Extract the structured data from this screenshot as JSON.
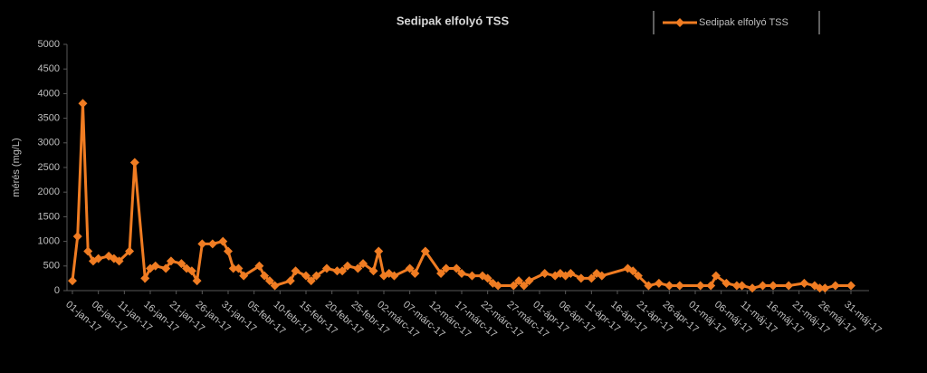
{
  "chart_data": {
    "type": "line",
    "title": "Sedipak elfolyó TSS",
    "y_label": "mérés (mg/L)",
    "series": [
      {
        "name": "Sedipak elfolyó TSS",
        "color": "#f07c22",
        "x": [
          "2017-01-01",
          "2017-01-02",
          "2017-01-03",
          "2017-01-04",
          "2017-01-05",
          "2017-01-06",
          "2017-01-08",
          "2017-01-09",
          "2017-01-10",
          "2017-01-12",
          "2017-01-13",
          "2017-01-15",
          "2017-01-16",
          "2017-01-17",
          "2017-01-19",
          "2017-01-20",
          "2017-01-22",
          "2017-01-23",
          "2017-01-24",
          "2017-01-25",
          "2017-01-26",
          "2017-01-28",
          "2017-01-30",
          "2017-01-31",
          "2017-02-01",
          "2017-02-02",
          "2017-02-03",
          "2017-02-06",
          "2017-02-07",
          "2017-02-08",
          "2017-02-09",
          "2017-02-12",
          "2017-02-13",
          "2017-02-15",
          "2017-02-16",
          "2017-02-17",
          "2017-02-19",
          "2017-02-21",
          "2017-02-22",
          "2017-02-23",
          "2017-02-25",
          "2017-02-26",
          "2017-02-28",
          "2017-03-01",
          "2017-03-02",
          "2017-03-03",
          "2017-03-04",
          "2017-03-07",
          "2017-03-08",
          "2017-03-10",
          "2017-03-13",
          "2017-03-14",
          "2017-03-16",
          "2017-03-17",
          "2017-03-19",
          "2017-03-21",
          "2017-03-22",
          "2017-03-23",
          "2017-03-24",
          "2017-03-27",
          "2017-03-28",
          "2017-03-29",
          "2017-03-30",
          "2017-04-02",
          "2017-04-04",
          "2017-04-05",
          "2017-04-06",
          "2017-04-07",
          "2017-04-09",
          "2017-04-11",
          "2017-04-12",
          "2017-04-13",
          "2017-04-18",
          "2017-04-19",
          "2017-04-20",
          "2017-04-22",
          "2017-04-24",
          "2017-04-26",
          "2017-04-28",
          "2017-05-02",
          "2017-05-04",
          "2017-05-05",
          "2017-05-07",
          "2017-05-09",
          "2017-05-10",
          "2017-05-12",
          "2017-05-14",
          "2017-05-16",
          "2017-05-19",
          "2017-05-22",
          "2017-05-24",
          "2017-05-25",
          "2017-05-26",
          "2017-05-28",
          "2017-05-31"
        ],
        "values": [
          200,
          1100,
          3800,
          800,
          600,
          650,
          700,
          650,
          600,
          800,
          2600,
          250,
          450,
          500,
          450,
          600,
          550,
          450,
          400,
          200,
          950,
          950,
          1000,
          800,
          450,
          450,
          300,
          500,
          300,
          200,
          100,
          200,
          400,
          300,
          200,
          300,
          450,
          400,
          400,
          500,
          450,
          550,
          400,
          800,
          300,
          350,
          300,
          450,
          350,
          800,
          350,
          450,
          450,
          350,
          300,
          300,
          250,
          150,
          100,
          100,
          200,
          100,
          200,
          350,
          300,
          350,
          300,
          350,
          250,
          250,
          350,
          300,
          450,
          400,
          300,
          100,
          150,
          100,
          100,
          100,
          100,
          300,
          150,
          100,
          100,
          50,
          100,
          100,
          100,
          150,
          100,
          50,
          50,
          100,
          100
        ]
      }
    ],
    "xlim": [
      "2017-01-01",
      "2017-05-31"
    ],
    "xticks": [
      {
        "value": "2017-01-01",
        "label": "01-jan-17"
      },
      {
        "value": "2017-01-06",
        "label": "06-jan-17"
      },
      {
        "value": "2017-01-11",
        "label": "11-jan-17"
      },
      {
        "value": "2017-01-16",
        "label": "16-jan-17"
      },
      {
        "value": "2017-01-21",
        "label": "21-jan-17"
      },
      {
        "value": "2017-01-26",
        "label": "26-jan-17"
      },
      {
        "value": "2017-01-31",
        "label": "31-jan-17"
      },
      {
        "value": "2017-02-05",
        "label": "05-febr-17"
      },
      {
        "value": "2017-02-10",
        "label": "10-febr-17"
      },
      {
        "value": "2017-02-15",
        "label": "15-febr-17"
      },
      {
        "value": "2017-02-20",
        "label": "20-febr-17"
      },
      {
        "value": "2017-02-25",
        "label": "25-febr-17"
      },
      {
        "value": "2017-03-02",
        "label": "02-márc-17"
      },
      {
        "value": "2017-03-07",
        "label": "07-márc-17"
      },
      {
        "value": "2017-03-12",
        "label": "12-márc-17"
      },
      {
        "value": "2017-03-17",
        "label": "17-márc-17"
      },
      {
        "value": "2017-03-22",
        "label": "22-márc-17"
      },
      {
        "value": "2017-03-27",
        "label": "27-márc-17"
      },
      {
        "value": "2017-04-01",
        "label": "01-ápr-17"
      },
      {
        "value": "2017-04-06",
        "label": "06-ápr-17"
      },
      {
        "value": "2017-04-11",
        "label": "11-ápr-17"
      },
      {
        "value": "2017-04-16",
        "label": "16-ápr-17"
      },
      {
        "value": "2017-04-21",
        "label": "21-ápr-17"
      },
      {
        "value": "2017-04-26",
        "label": "26-ápr-17"
      },
      {
        "value": "2017-05-01",
        "label": "01-máj-17"
      },
      {
        "value": "2017-05-06",
        "label": "06-máj-17"
      },
      {
        "value": "2017-05-11",
        "label": "11-máj-17"
      },
      {
        "value": "2017-05-16",
        "label": "16-máj-17"
      },
      {
        "value": "2017-05-21",
        "label": "21-máj-17"
      },
      {
        "value": "2017-05-26",
        "label": "26-máj-17"
      },
      {
        "value": "2017-05-31",
        "label": "31-máj-17"
      }
    ],
    "ylim": [
      0,
      5000
    ],
    "yticks": [
      0,
      500,
      1000,
      1500,
      2000,
      2500,
      3000,
      3500,
      4000,
      4500,
      5000
    ],
    "grid": false,
    "legend": "top-right"
  }
}
